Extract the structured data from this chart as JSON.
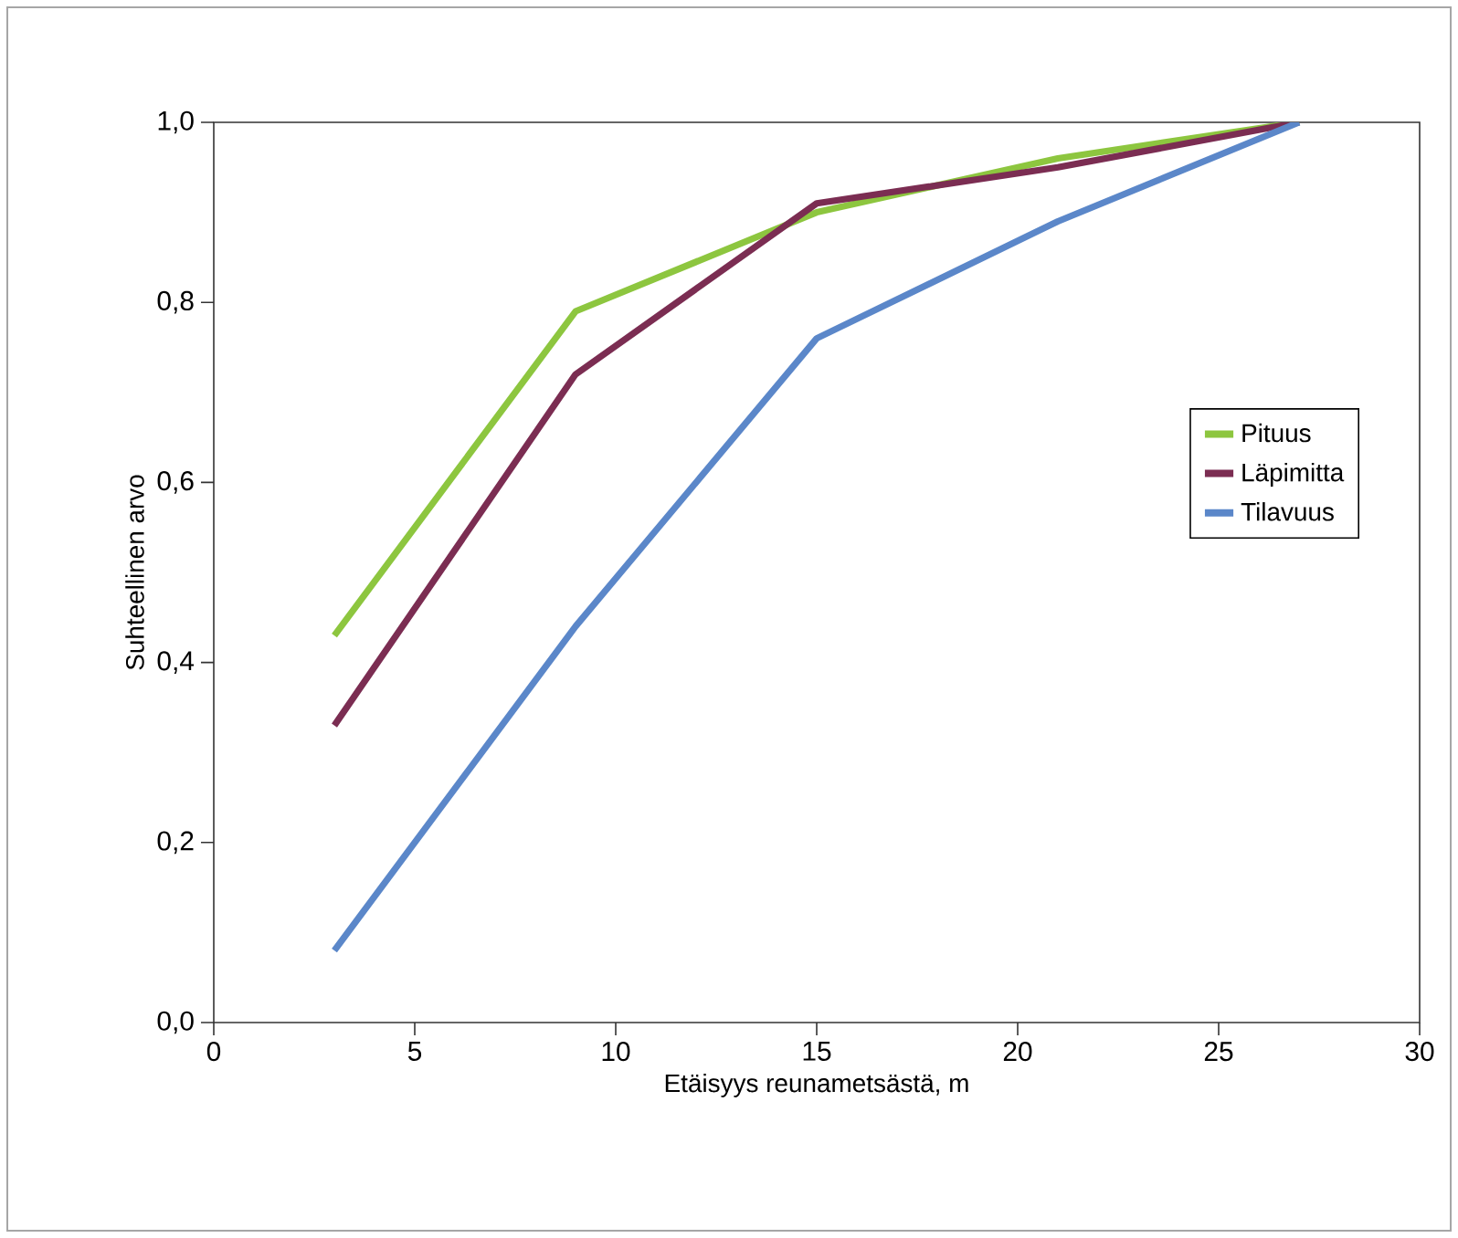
{
  "chart_data": {
    "type": "line",
    "xlabel": "Etäisyys reunametsästä, m",
    "ylabel": "Suhteellinen arvo",
    "x": [
      3,
      9,
      15,
      21,
      27
    ],
    "series": [
      {
        "name": "Pituus",
        "color": "#8dc63f",
        "values": [
          0.43,
          0.79,
          0.9,
          0.96,
          1.0
        ]
      },
      {
        "name": "Läpimitta",
        "color": "#7b2d52",
        "values": [
          0.33,
          0.72,
          0.91,
          0.95,
          1.0
        ]
      },
      {
        "name": "Tilavuus",
        "color": "#5b87c9",
        "values": [
          0.08,
          0.44,
          0.76,
          0.89,
          1.0
        ]
      }
    ],
    "xlim": [
      0,
      30
    ],
    "xticks": [
      0,
      5,
      10,
      15,
      20,
      25,
      30
    ],
    "ylim": [
      0,
      1
    ],
    "yticks": [
      {
        "value": 0,
        "label": "0,0"
      },
      {
        "value": 0.2,
        "label": "0,2"
      },
      {
        "value": 0.4,
        "label": "0,4"
      },
      {
        "value": 0.6,
        "label": "0,6"
      },
      {
        "value": 0.8,
        "label": "0,8"
      },
      {
        "value": 1,
        "label": "1,0"
      }
    ],
    "grid": false,
    "legend": "right",
    "marker": "none",
    "line_style": "solid"
  }
}
